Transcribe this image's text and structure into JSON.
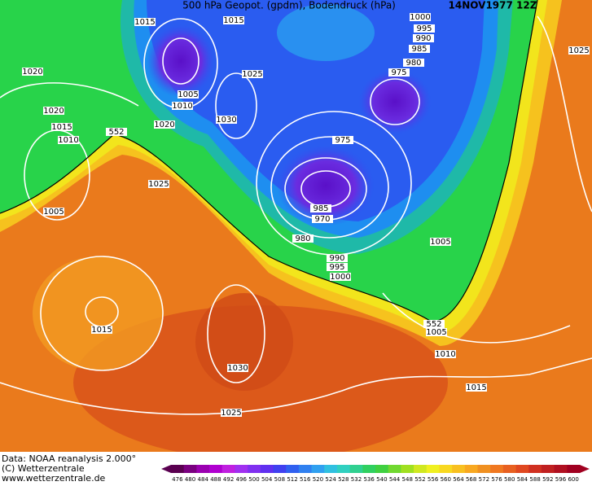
{
  "header": {
    "title": "500 hPa Geopot. (gpdm), Bodendruck (hPa)",
    "date": "14NOV1977 12Z"
  },
  "contour_labels": [
    "1015",
    "1015",
    "1000",
    "995",
    "990",
    "985",
    "980",
    "975",
    "1025",
    "1020",
    "1025",
    "1005",
    "1010",
    "1020",
    "1030",
    "1020",
    "1015",
    "1010",
    "552",
    "975",
    "1025",
    "1005",
    "985",
    "970",
    "980",
    "990",
    "995",
    "1000",
    "1005",
    "1015",
    "552",
    "1005",
    "1010",
    "1030",
    "1015",
    "1025"
  ],
  "footer": {
    "source": "Data: NOAA reanalysis 2.000°",
    "copyright": "(C) Wetterzentrale",
    "url": "www.wetterzentrale.de"
  },
  "colorbar": {
    "labels": [
      "476",
      "480",
      "484",
      "488",
      "492",
      "496",
      "500",
      "504",
      "508",
      "512",
      "516",
      "520",
      "524",
      "528",
      "532",
      "536",
      "540",
      "544",
      "548",
      "552",
      "556",
      "560",
      "564",
      "568",
      "572",
      "576",
      "580",
      "584",
      "588",
      "592",
      "596",
      "600"
    ]
  }
}
